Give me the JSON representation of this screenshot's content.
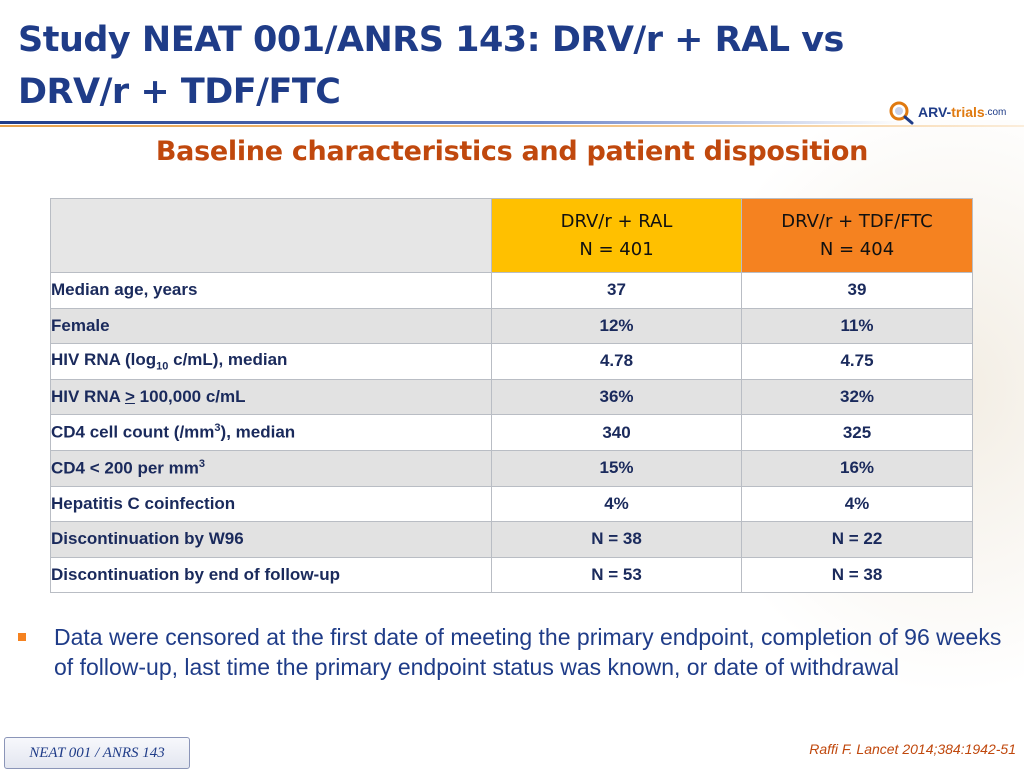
{
  "title": {
    "line1": "Study NEAT 001/ANRS 143: DRV/r + RAL vs",
    "line2": "DRV/r + TDF/FTC"
  },
  "logo": {
    "part1": "ARV-",
    "part2": "trials",
    "part3": ".com"
  },
  "subtitle": "Baseline characteristics and patient disposition",
  "table": {
    "columns": [
      {
        "name": "DRV/r + RAL",
        "n": "N = 401",
        "color": "#ffc000"
      },
      {
        "name": "DRV/r + TDF/FTC",
        "n": "N = 404",
        "color": "#f58220"
      }
    ],
    "rows": [
      {
        "label": "Median age, years",
        "ral": "37",
        "tdf": "39"
      },
      {
        "label": "Female",
        "ral": "12%",
        "tdf": "11%"
      },
      {
        "label_pre": "HIV RNA (log",
        "label_sub": "10",
        "label_post": " c/mL), median",
        "ral": "4.78",
        "tdf": "4.75"
      },
      {
        "label_pre": "HIV RNA ",
        "label_sym": ">",
        "label_post": " 100,000 c/mL",
        "ral": "36%",
        "tdf": "32%"
      },
      {
        "label_pre": "CD4 cell count (/mm",
        "label_sup": "3",
        "label_post": "), median",
        "ral": "340",
        "tdf": "325"
      },
      {
        "label_pre": "CD4 < 200 per mm",
        "label_sup": "3",
        "ral": "15%",
        "tdf": "16%"
      },
      {
        "label": "Hepatitis C coinfection",
        "ral": "4%",
        "tdf": "4%"
      },
      {
        "label": "Discontinuation by W96",
        "ral": "N = 38",
        "tdf": "N = 22"
      },
      {
        "label": "Discontinuation by end of follow-up",
        "ral": "N = 53",
        "tdf": "N = 38"
      }
    ]
  },
  "bullet": "Data were censored at the first date of meeting the primary endpoint, completion of 96 weeks of follow-up, last time the primary endpoint status was known, or date of withdrawal",
  "footer_tag": "NEAT 001 / ANRS 143",
  "citation": "Raffi F. Lancet 2014;384:1942-51",
  "colors": {
    "title": "#1f3c88",
    "accent": "#c0480d",
    "ral_header": "#ffc000",
    "tdf_header": "#f58220"
  }
}
